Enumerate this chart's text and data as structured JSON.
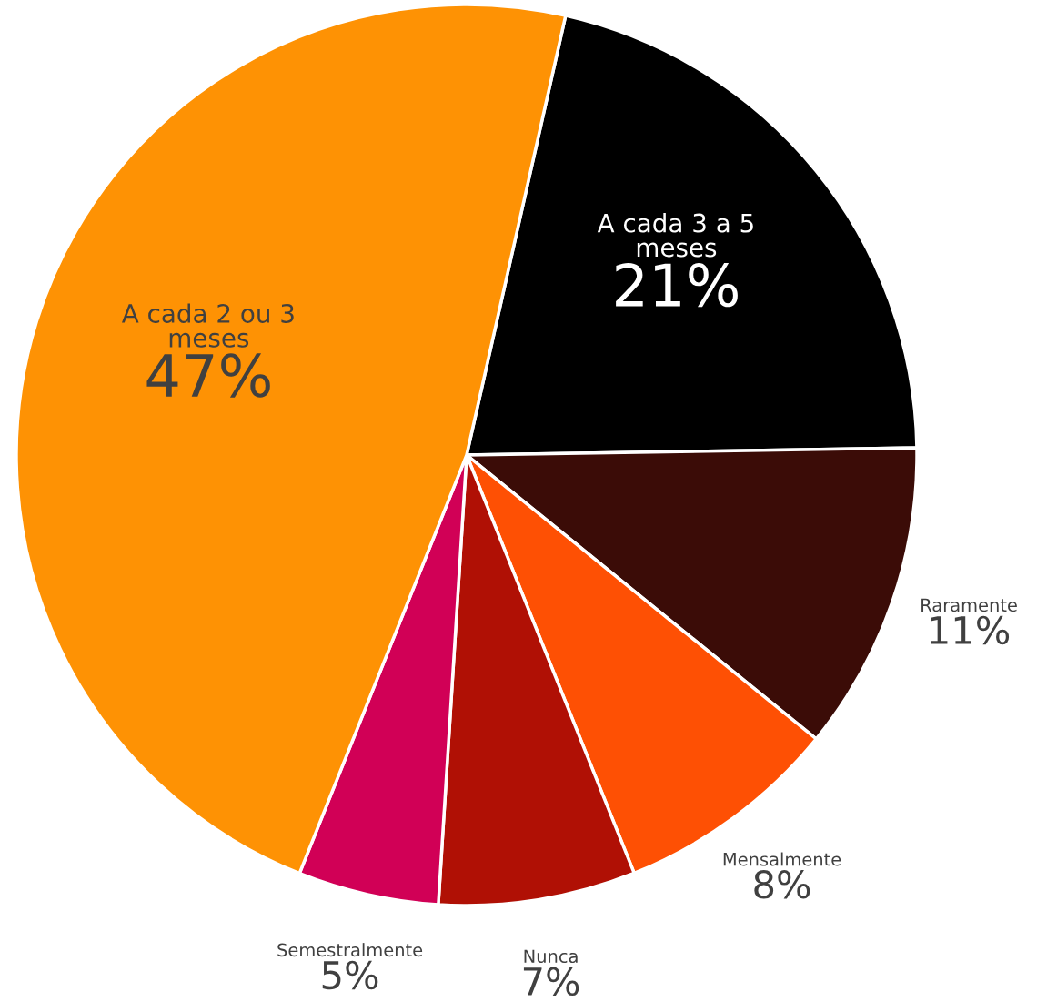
{
  "chart_data": {
    "type": "pie",
    "categories": [
      "A cada 3 a 5\nmeses",
      "Raramente",
      "Mensalmente",
      "Nunca",
      "Semestralmente",
      "A cada 2 ou 3\nmeses"
    ],
    "values": [
      21,
      11,
      8,
      7,
      5,
      47
    ],
    "colors": [
      "#000000",
      "#3b0c07",
      "#fe5004",
      "#b01005",
      "#d10056",
      "#fe9204"
    ],
    "value_labels": [
      "21%",
      "11%",
      "8%",
      "7%",
      "5%",
      "47%"
    ]
  }
}
